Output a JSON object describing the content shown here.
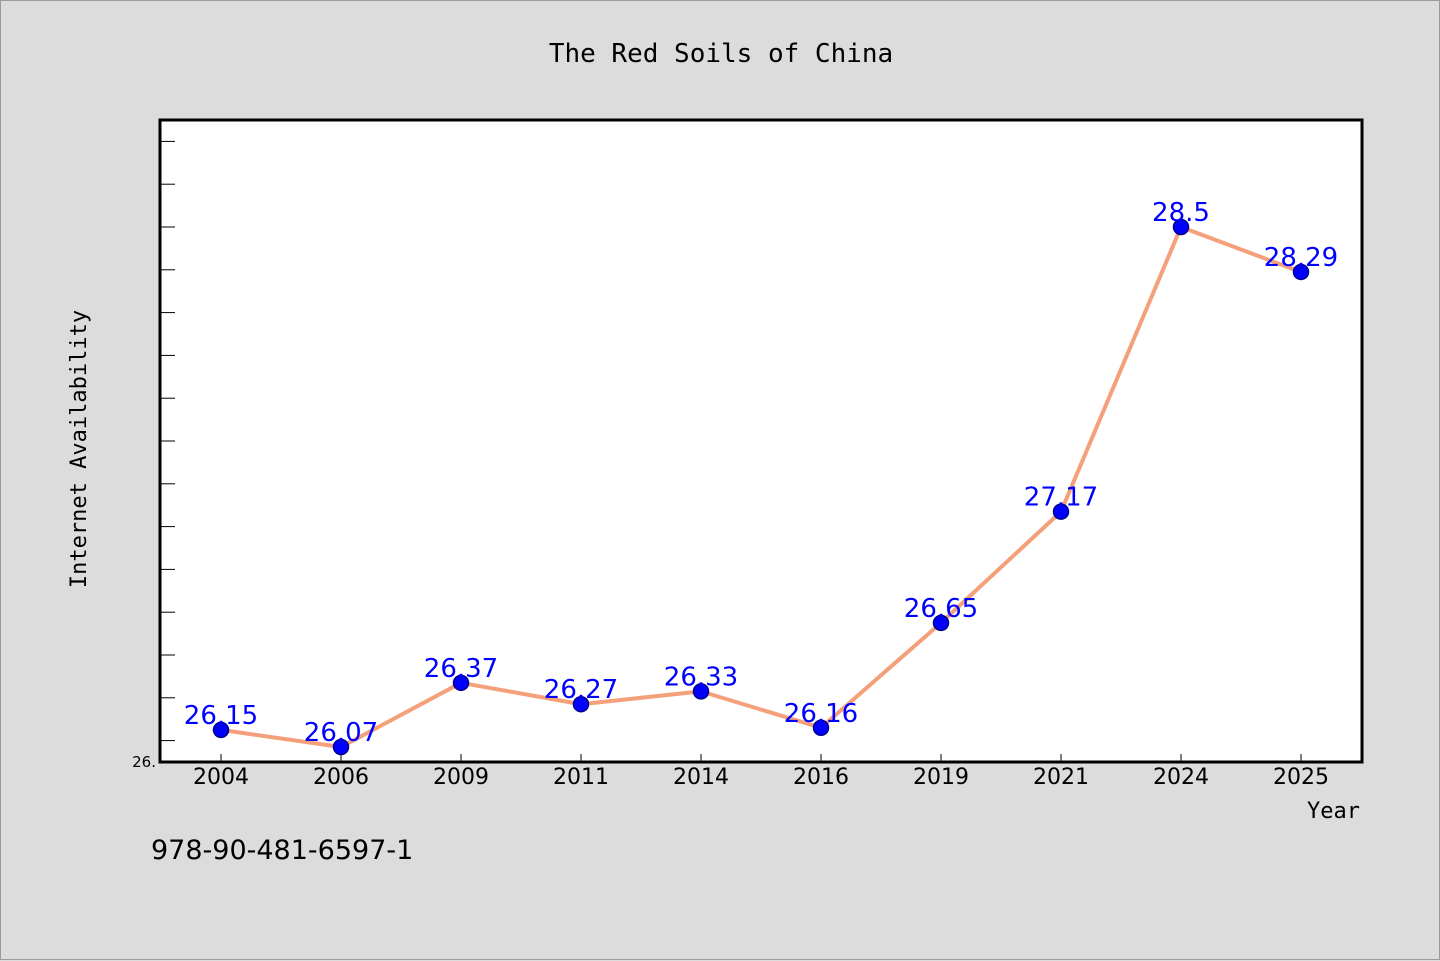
{
  "chart_data": {
    "type": "line",
    "title": "The Red Soils of China",
    "xlabel": "Year",
    "ylabel": "Internet Availability",
    "categories": [
      "2004",
      "2006",
      "2009",
      "2011",
      "2014",
      "2016",
      "2019",
      "2021",
      "2024",
      "2025"
    ],
    "series": [
      {
        "values": [
          26.15,
          26.07,
          26.37,
          26.27,
          26.33,
          26.16,
          26.65,
          27.17,
          28.5,
          28.29
        ]
      }
    ],
    "value_labels": [
      "26.15",
      "26.07",
      "26.37",
      "26.27",
      "26.33",
      "26.16",
      "26.65",
      "27.17",
      "28.5",
      "28.29"
    ],
    "ylim": [
      26.0,
      29.0
    ],
    "y_tick_label": "26.",
    "grid": false,
    "legend": "none",
    "line_color": "#f4a07a",
    "marker_color": "#0000ff",
    "label_color": "#0000ff",
    "plot_background": "#ffffff",
    "figure_background": "#dcdcdc"
  },
  "footer": {
    "isbn": "978-90-481-6597-1"
  }
}
